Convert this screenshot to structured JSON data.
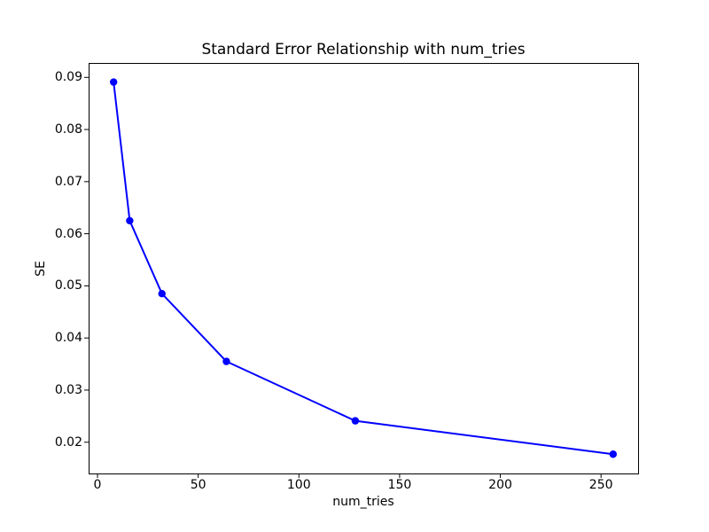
{
  "figure": {
    "background_color": "#ffffff",
    "axes_edge_color": "#000000",
    "text_color": "#000000"
  },
  "chart_data": {
    "type": "line",
    "title": "Standard Error Relationship with num_tries",
    "xlabel": "num_tries",
    "ylabel": "SE",
    "grid": false,
    "legend": null,
    "xlim": [
      -4.4,
      268.4
    ],
    "ylim": [
      0.014,
      0.0926
    ],
    "x_ticks": [
      0,
      50,
      100,
      150,
      200,
      250
    ],
    "y_ticks": [
      0.02,
      0.03,
      0.04,
      0.05,
      0.06,
      0.07,
      0.08,
      0.09
    ],
    "y_tick_decimals": 2,
    "series": [
      {
        "name": "SE",
        "color": "#0000ff",
        "marker": "circle",
        "x": [
          8,
          16,
          32,
          64,
          128,
          256
        ],
        "y": [
          0.0891,
          0.0625,
          0.0485,
          0.0355,
          0.0241,
          0.0177
        ]
      }
    ]
  }
}
